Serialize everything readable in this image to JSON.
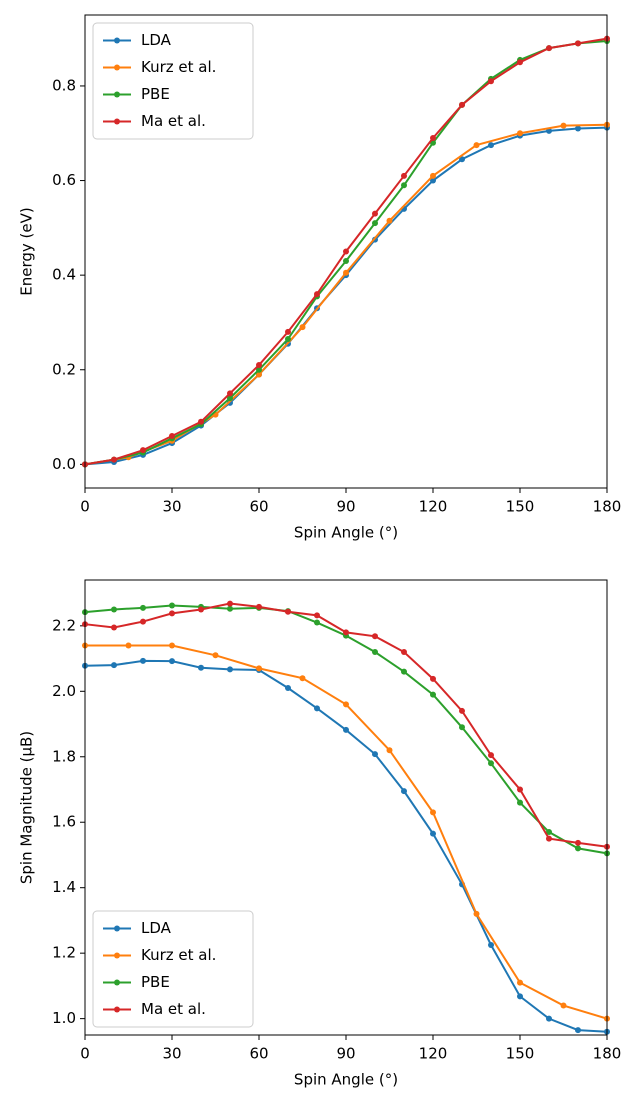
{
  "chart_data": [
    {
      "type": "line",
      "xlabel": "Spin Angle (°)",
      "ylabel": "Energy (eV)",
      "xlim": [
        0,
        180
      ],
      "xticks": [
        0,
        30,
        60,
        90,
        120,
        150,
        180
      ],
      "ylim": [
        -0.05,
        0.95
      ],
      "yticks": [
        {
          "value": 0,
          "label": "0.0"
        },
        0.2,
        0.4,
        0.6,
        0.8
      ],
      "legend": "upper left",
      "series": [
        {
          "name": "LDA",
          "color": "#1f77b4",
          "x": [
            0,
            10,
            20,
            30,
            40,
            50,
            60,
            70,
            80,
            90,
            100,
            110,
            120,
            130,
            140,
            150,
            160,
            170,
            180
          ],
          "values": [
            0,
            0.005,
            0.02,
            0.045,
            0.082,
            0.13,
            0.19,
            0.255,
            0.33,
            0.4,
            0.475,
            0.54,
            0.6,
            0.645,
            0.675,
            0.695,
            0.705,
            0.71,
            0.712
          ]
        },
        {
          "name": "Kurz et al.",
          "color": "#ff7f0e",
          "x": [
            0,
            15,
            30,
            45,
            60,
            75,
            90,
            105,
            120,
            135,
            150,
            165,
            180
          ],
          "values": [
            0,
            0.015,
            0.05,
            0.105,
            0.19,
            0.29,
            0.405,
            0.515,
            0.61,
            0.675,
            0.7,
            0.716,
            0.718
          ]
        },
        {
          "name": "PBE",
          "color": "#2ca02c",
          "x": [
            0,
            10,
            20,
            30,
            40,
            50,
            60,
            70,
            80,
            90,
            100,
            110,
            120,
            130,
            140,
            150,
            160,
            170,
            180
          ],
          "values": [
            0,
            0.01,
            0.025,
            0.055,
            0.085,
            0.14,
            0.2,
            0.265,
            0.355,
            0.43,
            0.51,
            0.59,
            0.68,
            0.76,
            0.815,
            0.855,
            0.88,
            0.89,
            0.895
          ]
        },
        {
          "name": "Ma et al.",
          "color": "#d62728",
          "x": [
            0,
            10,
            20,
            30,
            40,
            50,
            60,
            70,
            80,
            90,
            100,
            110,
            120,
            130,
            140,
            150,
            160,
            170,
            180
          ],
          "values": [
            0,
            0.01,
            0.03,
            0.06,
            0.09,
            0.15,
            0.21,
            0.28,
            0.36,
            0.45,
            0.53,
            0.61,
            0.69,
            0.76,
            0.81,
            0.85,
            0.88,
            0.89,
            0.9
          ]
        }
      ]
    },
    {
      "type": "line",
      "xlabel": "Spin Angle (°)",
      "ylabel": "Spin Magnitude (μB)",
      "xlim": [
        0,
        180
      ],
      "xticks": [
        0,
        30,
        60,
        90,
        120,
        150,
        180
      ],
      "ylim": [
        0.95,
        2.34
      ],
      "yticks": [
        {
          "value": 1,
          "label": "1.0"
        },
        1.2,
        1.4,
        1.6,
        1.8,
        {
          "value": 2,
          "label": "2.0"
        },
        2.2
      ],
      "legend": "lower left",
      "series": [
        {
          "name": "LDA",
          "color": "#1f77b4",
          "x": [
            0,
            10,
            20,
            30,
            40,
            50,
            60,
            70,
            80,
            90,
            100,
            110,
            120,
            130,
            140,
            150,
            160,
            170,
            180
          ],
          "values": [
            2.078,
            2.08,
            2.093,
            2.092,
            2.072,
            2.067,
            2.065,
            2.01,
            1.948,
            1.882,
            1.808,
            1.695,
            1.565,
            1.41,
            1.225,
            1.068,
            1.0,
            0.965,
            0.96
          ]
        },
        {
          "name": "Kurz et al.",
          "color": "#ff7f0e",
          "x": [
            0,
            15,
            30,
            45,
            60,
            75,
            90,
            105,
            120,
            135,
            150,
            165,
            180
          ],
          "values": [
            2.14,
            2.14,
            2.14,
            2.11,
            2.07,
            2.04,
            1.96,
            1.82,
            1.63,
            1.32,
            1.11,
            1.04,
            1.0
          ]
        },
        {
          "name": "PBE",
          "color": "#2ca02c",
          "x": [
            0,
            10,
            20,
            30,
            40,
            50,
            60,
            70,
            80,
            90,
            100,
            110,
            120,
            130,
            140,
            150,
            160,
            170,
            180
          ],
          "values": [
            2.242,
            2.25,
            2.255,
            2.262,
            2.258,
            2.252,
            2.255,
            2.245,
            2.21,
            2.17,
            2.12,
            2.06,
            1.99,
            1.89,
            1.78,
            1.66,
            1.57,
            1.52,
            1.505
          ]
        },
        {
          "name": "Ma et al.",
          "color": "#d62728",
          "x": [
            0,
            10,
            20,
            30,
            40,
            50,
            60,
            70,
            80,
            90,
            100,
            110,
            120,
            130,
            140,
            150,
            160,
            170,
            180
          ],
          "values": [
            2.205,
            2.195,
            2.213,
            2.238,
            2.25,
            2.268,
            2.258,
            2.243,
            2.232,
            2.18,
            2.168,
            2.12,
            2.038,
            1.94,
            1.805,
            1.7,
            1.55,
            1.537,
            1.525
          ]
        }
      ]
    }
  ]
}
